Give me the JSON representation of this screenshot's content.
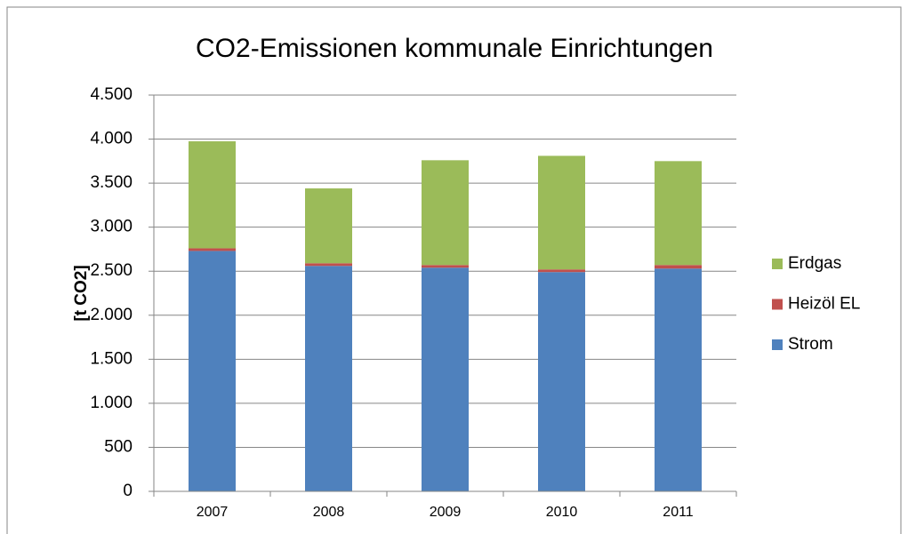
{
  "chart_data": {
    "type": "stacked_bar",
    "title": "CO2-Emissionen kommunale Einrichtungen",
    "y_label": "[t CO2]",
    "categories": [
      "2007",
      "2008",
      "2009",
      "2010",
      "2011"
    ],
    "series": [
      {
        "name": "Strom",
        "color": "#4f81bd",
        "values": [
          2730,
          2560,
          2540,
          2490,
          2530
        ]
      },
      {
        "name": "Heizöl EL",
        "color": "#c0504d",
        "values": [
          30,
          30,
          30,
          30,
          40
        ]
      },
      {
        "name": "Erdgas",
        "color": "#9bbb59",
        "values": [
          1215,
          850,
          1190,
          1290,
          1180
        ]
      }
    ],
    "ylim": [
      0,
      4500
    ],
    "yticks": [
      0,
      500,
      {
        "value": 1000,
        "label": "1.000"
      },
      {
        "value": 1500,
        "label": "1.500"
      },
      {
        "value": 2000,
        "label": "2.000"
      },
      {
        "value": 2500,
        "label": "2.500"
      },
      {
        "value": 3000,
        "label": "3.000"
      },
      {
        "value": 3500,
        "label": "3.500"
      },
      {
        "value": 4000,
        "label": "4.000"
      },
      {
        "value": 4500,
        "label": "4.500"
      }
    ],
    "grid": true,
    "legend": "right"
  }
}
